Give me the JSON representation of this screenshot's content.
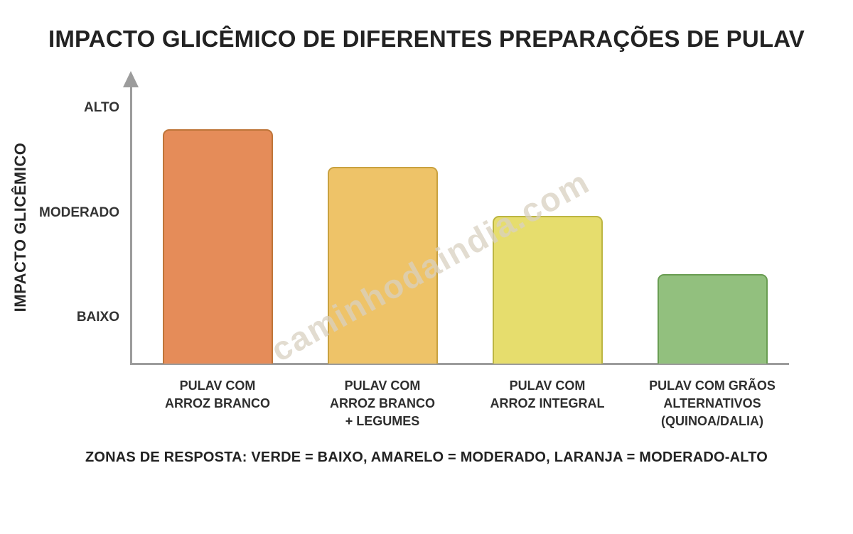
{
  "title": "IMPACTO GLICÊMICO DE DIFERENTES PREPARAÇÕES DE PULAV",
  "y_axis": {
    "label": "IMPACTO GLICÊMICO",
    "ticks": [
      "ALTO",
      "MODERADO",
      "BAIXO"
    ]
  },
  "x_labels_display": [
    "PULAV COM\nARROZ BRANCO",
    "PULAV COM\nARROZ BRANCO\n+ LEGUMES",
    "PULAV COM\nARROZ INTEGRAL",
    "PULAV COM GRÃOS\nALTERNATIVOS\n(QUINOA/DALIA)"
  ],
  "footer": "ZONAS DE RESPOSTA: VERDE = BAIXO, AMARELO = MODERADO, LARANJA = MODERADO-ALTO",
  "watermark": "caminhodaindia.com",
  "chart_data": {
    "type": "bar",
    "title": "IMPACTO GLICÊMICO DE DIFERENTES PREPARAÇÕES DE PULAV",
    "xlabel": "",
    "ylabel": "IMPACTO GLICÊMICO",
    "categories": [
      "PULAV COM ARROZ BRANCO",
      "PULAV COM ARROZ BRANCO + LEGUMES",
      "PULAV COM ARROZ INTEGRAL",
      "PULAV COM GRÃOS ALTERNATIVOS (QUINOA/DALIA)"
    ],
    "values": [
      81,
      68,
      51,
      31
    ],
    "value_note": "relative 0-100 scale estimated from bar heights; source chart has qualitative axis only",
    "y_ticks": [
      {
        "label": "ALTO",
        "value": 88
      },
      {
        "label": "MODERADO",
        "value": 52
      },
      {
        "label": "BAIXO",
        "value": 16
      }
    ],
    "ylim": [
      0,
      100
    ],
    "grid": false,
    "legend": false,
    "bar_colors": [
      "#E58C59",
      "#EEC368",
      "#E6DD6D",
      "#92C07E"
    ],
    "bar_border_colors": [
      "#BE7539",
      "#C9A13F",
      "#BCB542",
      "#699D52"
    ],
    "zones_note": "VERDE = BAIXO, AMARELO = MODERADO, LARANJA = MODERADO-ALTO"
  },
  "colors": {
    "axis": "#9C9C9C",
    "title_text": "#222222",
    "watermark": "#D8D0C0"
  }
}
